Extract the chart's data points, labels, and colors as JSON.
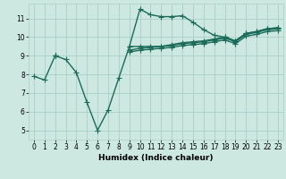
{
  "xlabel": "Humidex (Indice chaleur)",
  "background_color": "#cce8e0",
  "grid_color": "#aacfc8",
  "line_color": "#1a6b5a",
  "x_values": [
    0,
    1,
    2,
    3,
    4,
    5,
    6,
    7,
    8,
    9,
    10,
    11,
    12,
    13,
    14,
    15,
    16,
    17,
    18,
    19,
    20,
    21,
    22,
    23
  ],
  "series": [
    [
      7.9,
      7.7,
      9.0,
      8.8,
      8.1,
      6.5,
      5.0,
      6.1,
      7.8,
      9.5,
      11.5,
      11.2,
      11.1,
      11.1,
      11.15,
      10.8,
      10.4,
      10.1,
      10.0,
      9.8,
      10.2,
      10.3,
      10.45,
      10.5
    ],
    [
      null,
      null,
      9.0,
      null,
      null,
      null,
      null,
      null,
      null,
      9.5,
      9.5,
      9.5,
      9.5,
      9.6,
      9.7,
      9.75,
      9.8,
      9.9,
      10.0,
      9.8,
      10.2,
      10.3,
      10.45,
      10.5
    ],
    [
      null,
      null,
      9.0,
      null,
      null,
      null,
      null,
      null,
      null,
      9.3,
      9.4,
      9.45,
      9.5,
      9.55,
      9.65,
      9.7,
      9.75,
      9.85,
      9.95,
      9.75,
      10.15,
      10.25,
      10.4,
      10.45
    ],
    [
      null,
      null,
      9.0,
      null,
      null,
      null,
      null,
      null,
      null,
      9.2,
      9.3,
      9.35,
      9.4,
      9.45,
      9.55,
      9.6,
      9.65,
      9.75,
      9.85,
      9.65,
      10.05,
      10.15,
      10.3,
      10.35
    ]
  ],
  "ylim": [
    4.5,
    11.8
  ],
  "xlim": [
    -0.5,
    23.5
  ],
  "yticks": [
    5,
    6,
    7,
    8,
    9,
    10,
    11
  ],
  "xticks": [
    0,
    1,
    2,
    3,
    4,
    5,
    6,
    7,
    8,
    9,
    10,
    11,
    12,
    13,
    14,
    15,
    16,
    17,
    18,
    19,
    20,
    21,
    22,
    23
  ],
  "marker": "+",
  "markersize": 4,
  "linewidth": 1.0
}
